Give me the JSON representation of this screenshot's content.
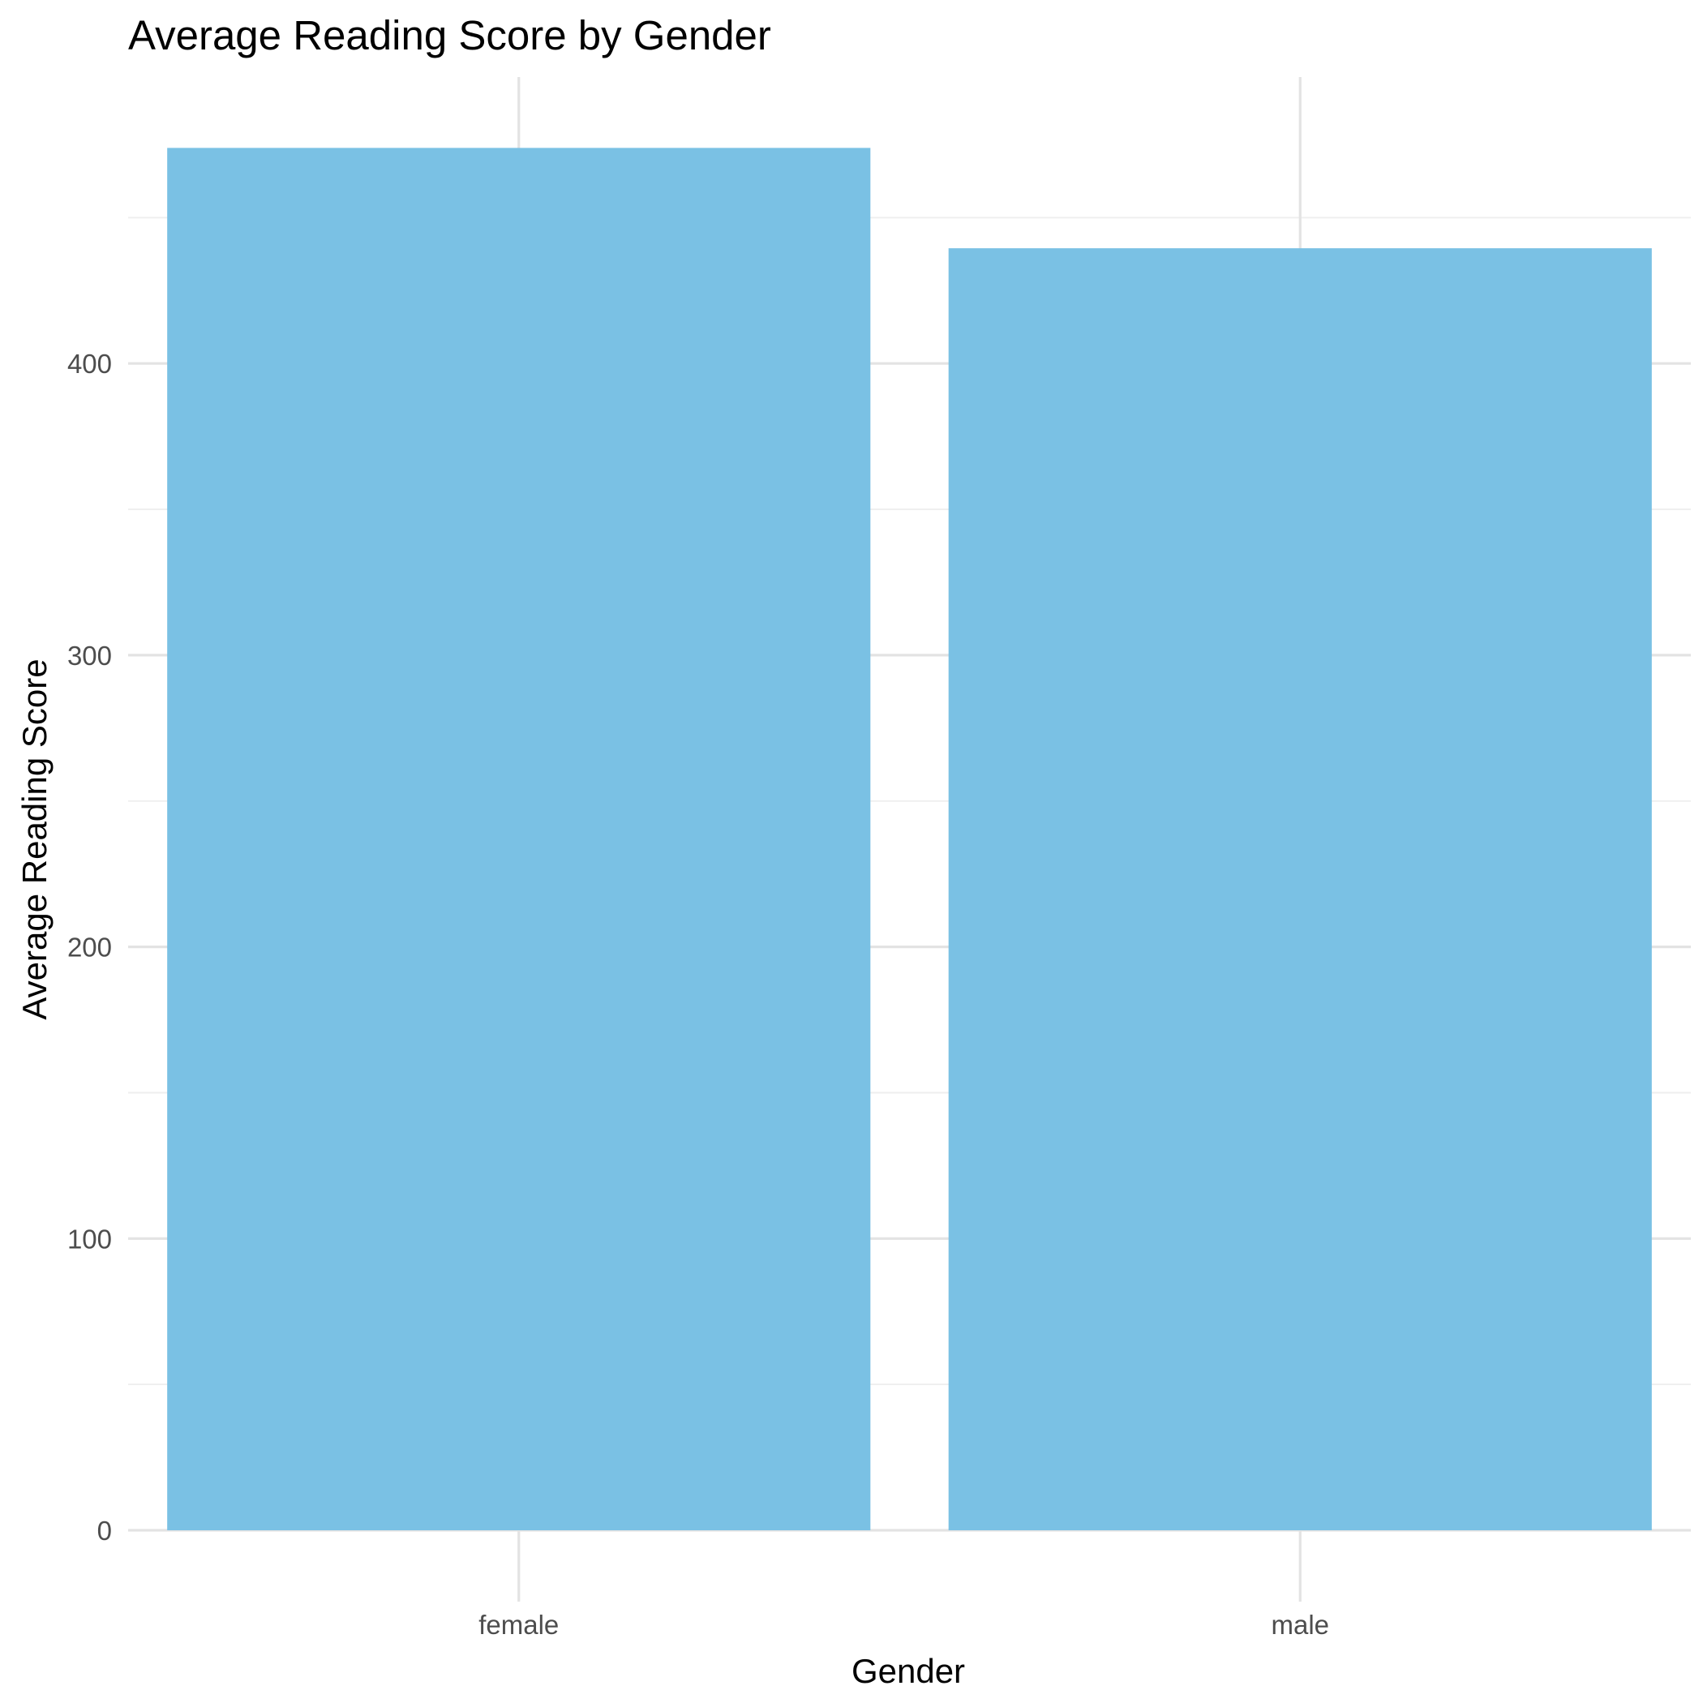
{
  "chart_data": {
    "type": "bar",
    "title": "Average Reading Score by Gender",
    "xlabel": "Gender",
    "ylabel": "Average Reading Score",
    "categories": [
      "female",
      "male"
    ],
    "values": [
      473.9,
      439.5
    ],
    "ylim": [
      0,
      500
    ],
    "yticks": [
      0,
      100,
      200,
      300,
      400
    ],
    "yticks_minor": [
      50,
      150,
      250,
      350,
      450
    ],
    "grid": true,
    "legend": "none",
    "bar_color": "#7AC1E4"
  }
}
